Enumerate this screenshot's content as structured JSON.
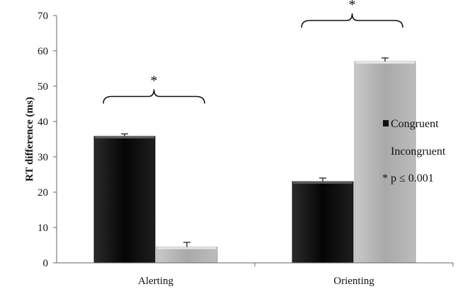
{
  "chart_data": {
    "type": "bar",
    "title": "",
    "xlabel": "",
    "ylabel": "RT difference (ms)",
    "ylim": [
      0,
      70
    ],
    "yticks": [
      0,
      10,
      20,
      30,
      40,
      50,
      60,
      70
    ],
    "categories": [
      "Alerting",
      "Orienting"
    ],
    "series": [
      {
        "name": "Congruent",
        "values": [
          35.8,
          23.0
        ],
        "errors": [
          0.7,
          1.0
        ],
        "color": "#111111"
      },
      {
        "name": "Incongruent",
        "values": [
          4.5,
          57.0
        ],
        "errors": [
          1.3,
          1.0
        ],
        "color": "#b3b3b3"
      }
    ],
    "significance_marker": "*",
    "significance_note": "* p ≤ 0.001",
    "grid": false,
    "legend_position": "right"
  }
}
